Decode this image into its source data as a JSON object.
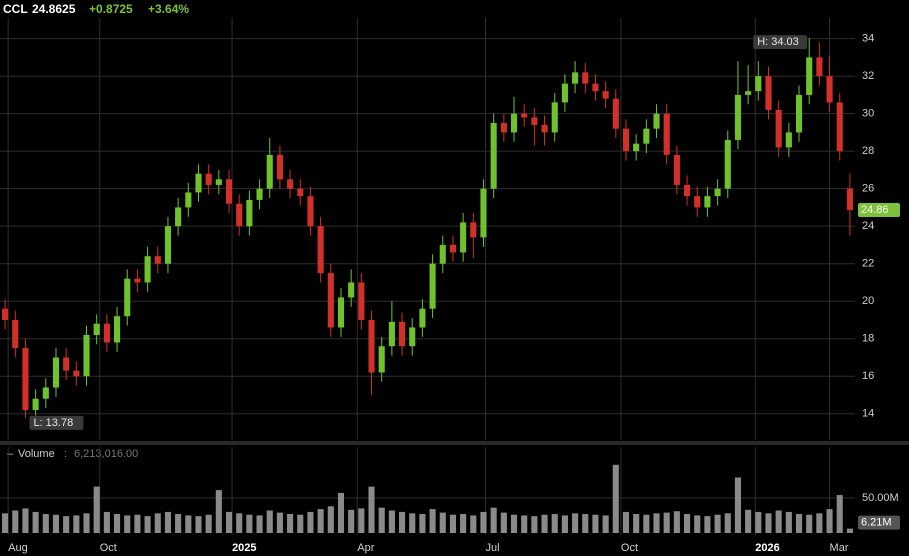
{
  "chart_data": {
    "type": "candlestick",
    "header": {
      "ticker": "CCL",
      "last": "24.8625",
      "change": "+0.8725",
      "change_pct": "+3.64%"
    },
    "up_color": "#6fc22e",
    "down_color": "#d2302a",
    "volume_color": "#8a8a8a",
    "open": [
      19.6,
      19.0,
      17.5,
      14.2,
      14.8,
      15.4,
      17.0,
      16.3,
      16.0,
      18.2,
      18.8,
      17.8,
      19.2,
      21.2,
      21.0,
      22.4,
      22.0,
      24.0,
      25.0,
      25.8,
      26.8,
      26.2,
      26.5,
      25.2,
      24.0,
      25.4,
      26.0,
      27.8,
      26.5,
      26.0,
      25.6,
      24.0,
      21.5,
      18.6,
      20.2,
      21.0,
      19.0,
      16.2,
      17.6,
      18.9,
      17.6,
      18.6,
      19.6,
      22.0,
      23.0,
      22.6,
      24.2,
      23.4,
      26.0,
      29.5,
      29.0,
      30.0,
      29.8,
      29.4,
      29.0,
      30.6,
      31.6,
      32.2,
      31.6,
      31.2,
      30.8,
      29.2,
      28.0,
      28.4,
      29.2,
      30.0,
      27.8,
      26.2,
      25.6,
      25.0,
      25.6,
      26.0,
      28.6,
      31.0,
      31.2,
      32.0,
      30.2,
      28.2,
      29.0,
      31.0,
      33.0,
      32.0,
      30.6,
      26.0
    ],
    "high": [
      20.1,
      19.5,
      18.0,
      15.3,
      15.9,
      17.5,
      17.5,
      16.8,
      18.7,
      19.3,
      19.3,
      19.7,
      21.7,
      21.7,
      22.9,
      22.9,
      24.5,
      25.5,
      26.3,
      27.3,
      27.3,
      27.0,
      27.0,
      25.7,
      25.9,
      26.5,
      28.7,
      28.3,
      27.0,
      26.5,
      26.1,
      24.5,
      22.0,
      20.7,
      21.7,
      21.5,
      19.5,
      18.1,
      20.0,
      19.4,
      19.1,
      20.1,
      22.5,
      23.5,
      23.5,
      24.7,
      24.7,
      26.5,
      30.0,
      30.0,
      30.9,
      30.5,
      30.3,
      29.9,
      31.1,
      32.1,
      32.8,
      32.7,
      32.1,
      31.7,
      31.3,
      29.7,
      28.9,
      29.7,
      30.5,
      30.5,
      28.3,
      26.7,
      26.1,
      26.1,
      26.5,
      29.1,
      32.8,
      32.6,
      32.8,
      32.5,
      30.7,
      29.5,
      31.5,
      34.03,
      33.8,
      33.1,
      31.1,
      26.8
    ],
    "low": [
      18.5,
      17.0,
      13.78,
      13.9,
      14.3,
      14.9,
      15.8,
      15.5,
      15.5,
      17.7,
      17.3,
      17.3,
      18.7,
      20.5,
      20.5,
      21.5,
      21.5,
      23.5,
      24.5,
      25.3,
      25.7,
      25.7,
      24.7,
      23.5,
      23.5,
      24.9,
      25.5,
      26.0,
      25.5,
      25.1,
      23.5,
      21.0,
      18.1,
      18.1,
      19.7,
      18.5,
      15.0,
      15.7,
      17.1,
      17.1,
      17.1,
      18.1,
      19.1,
      21.5,
      22.1,
      22.1,
      22.3,
      22.9,
      25.5,
      28.5,
      28.5,
      29.3,
      28.3,
      28.3,
      28.5,
      30.1,
      31.1,
      31.1,
      30.7,
      30.3,
      28.7,
      27.5,
      27.5,
      27.9,
      28.7,
      27.3,
      25.7,
      25.1,
      24.5,
      24.5,
      25.1,
      25.5,
      28.1,
      30.5,
      30.7,
      29.7,
      27.7,
      27.7,
      28.5,
      30.5,
      31.5,
      30.1,
      27.5,
      23.5
    ],
    "close": [
      19.0,
      17.5,
      14.2,
      14.8,
      15.4,
      17.0,
      16.3,
      16.0,
      18.2,
      18.8,
      17.8,
      19.2,
      21.2,
      21.0,
      22.4,
      22.0,
      24.0,
      25.0,
      25.8,
      26.8,
      26.2,
      26.5,
      25.2,
      24.0,
      25.4,
      26.0,
      27.8,
      26.5,
      26.0,
      25.6,
      24.0,
      21.5,
      18.6,
      20.2,
      21.0,
      19.0,
      16.2,
      17.6,
      18.9,
      17.6,
      18.6,
      19.6,
      22.0,
      23.0,
      22.6,
      24.2,
      23.4,
      26.0,
      29.5,
      29.0,
      30.0,
      29.8,
      29.4,
      29.0,
      30.6,
      31.6,
      32.2,
      31.6,
      31.2,
      30.8,
      29.2,
      28.0,
      28.4,
      29.2,
      30.0,
      27.8,
      26.2,
      25.6,
      25.0,
      25.6,
      26.0,
      28.6,
      31.0,
      31.2,
      32.0,
      30.2,
      28.2,
      29.0,
      31.0,
      33.0,
      32.0,
      30.6,
      28.0,
      24.86
    ],
    "volume": [
      28,
      32,
      35,
      30,
      27,
      26,
      24,
      25,
      28,
      66,
      30,
      27,
      25,
      26,
      24,
      28,
      30,
      27,
      25,
      24,
      26,
      61,
      30,
      28,
      26,
      25,
      32,
      29,
      27,
      26,
      30,
      34,
      38,
      57,
      33,
      35,
      66,
      36,
      32,
      30,
      28,
      27,
      34,
      29,
      26,
      27,
      25,
      30,
      36,
      29,
      26,
      25,
      24,
      26,
      27,
      25,
      28,
      27,
      26,
      25,
      97,
      30,
      27,
      26,
      28,
      29,
      31,
      27,
      25,
      24,
      26,
      28,
      79,
      33,
      30,
      28,
      32,
      30,
      27,
      26,
      28,
      34,
      54,
      6.213016
    ],
    "xlim": [
      -0.5,
      83.5
    ],
    "xticks": [
      {
        "value": 0.3,
        "label": "Aug"
      },
      {
        "value": 9.3,
        "label": "Oct"
      },
      {
        "value": 22.3,
        "label": "2025"
      },
      {
        "value": 34.6,
        "label": "Apr"
      },
      {
        "value": 47.2,
        "label": "Jul"
      },
      {
        "value": 60.5,
        "label": "Oct"
      },
      {
        "value": 73.7,
        "label": "2026"
      },
      {
        "value": 81.0,
        "label": "Mar"
      }
    ],
    "ylim": [
      12.6,
      35.1
    ],
    "yticks": [
      14,
      16,
      18,
      20,
      22,
      24,
      26,
      28,
      30,
      32,
      34
    ],
    "grid": true,
    "high_mark": {
      "value": 34.03,
      "label": "H: 34.03"
    },
    "low_mark": {
      "value": 13.78,
      "label": "L: 13.78"
    },
    "last_price": {
      "value": 24.86,
      "label": "24.86"
    },
    "volume_title": "Volume",
    "volume_readout": "6,213,016.00",
    "vlim": [
      0,
      101
    ],
    "vticks": [
      {
        "value": 50,
        "label": "50.00M"
      }
    ],
    "last_volume": {
      "value": 6.21,
      "label": "6.21M"
    }
  }
}
